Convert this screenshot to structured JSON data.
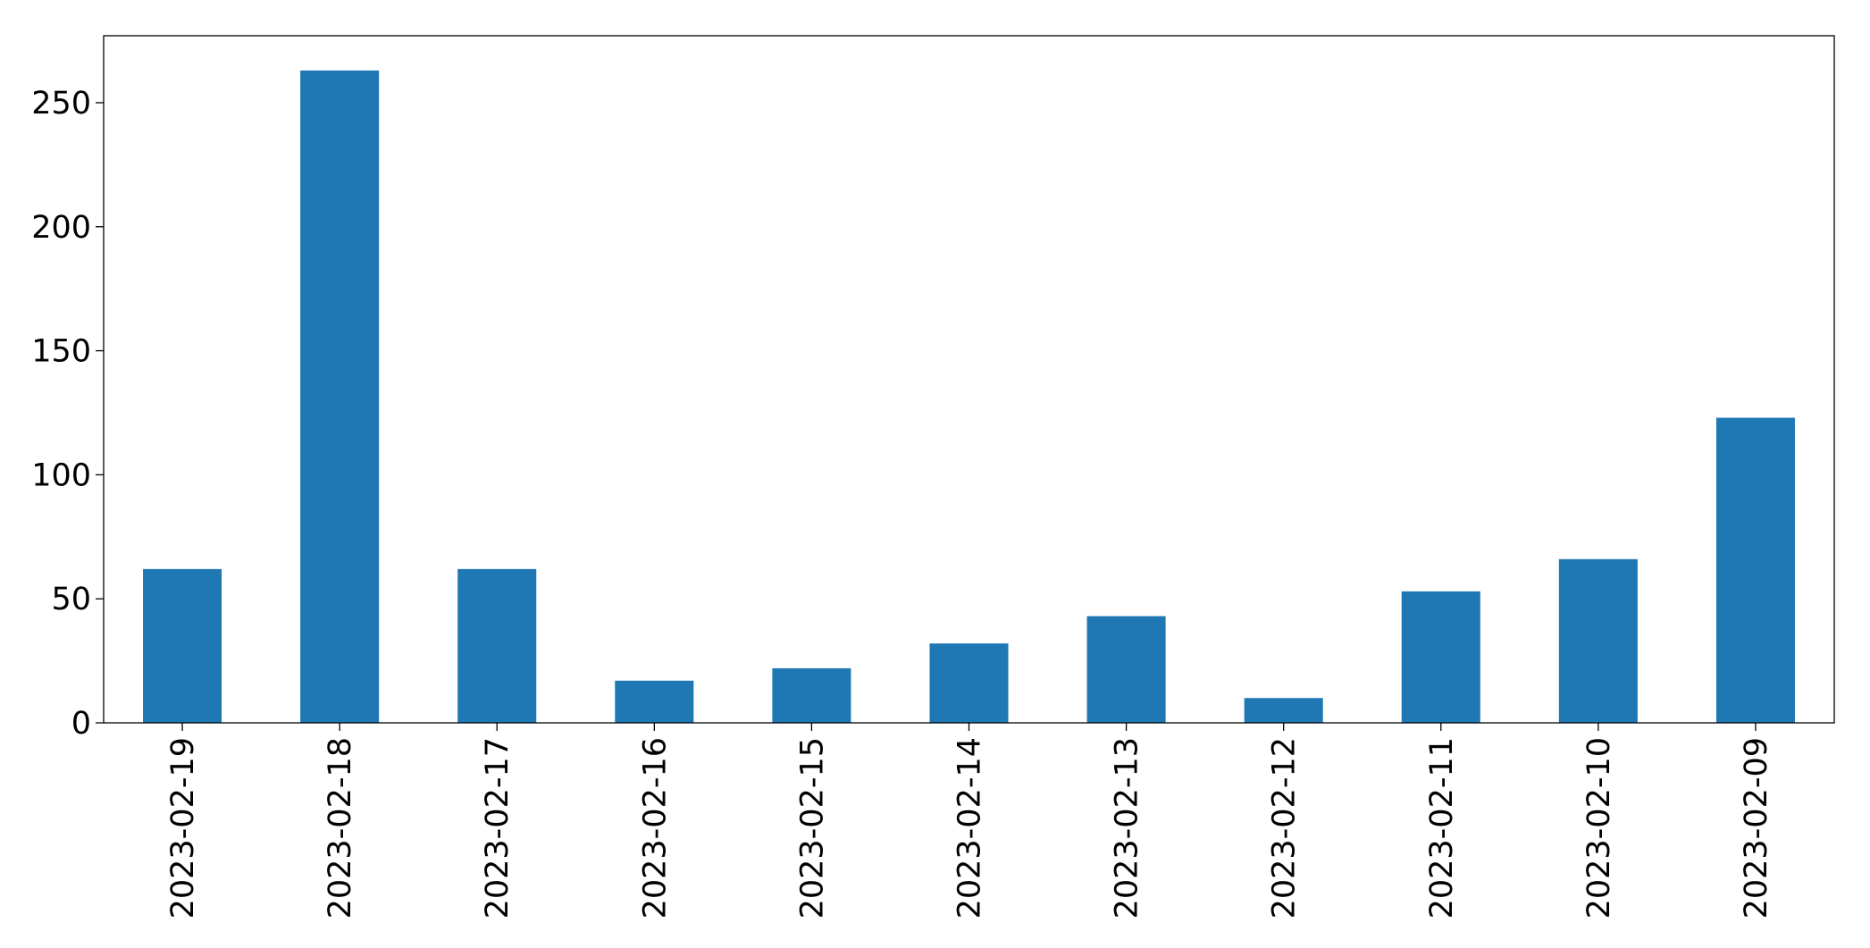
{
  "chart_data": {
    "type": "bar",
    "categories": [
      "2023-02-19",
      "2023-02-18",
      "2023-02-17",
      "2023-02-16",
      "2023-02-15",
      "2023-02-14",
      "2023-02-13",
      "2023-02-12",
      "2023-02-11",
      "2023-02-10",
      "2023-02-09"
    ],
    "values": [
      62,
      263,
      62,
      17,
      22,
      32,
      43,
      10,
      53,
      66,
      123
    ],
    "color": "#1f77b4",
    "ylim": [
      0,
      277
    ],
    "yticks": [
      0,
      50,
      100,
      150,
      200,
      250
    ],
    "grid": false
  }
}
